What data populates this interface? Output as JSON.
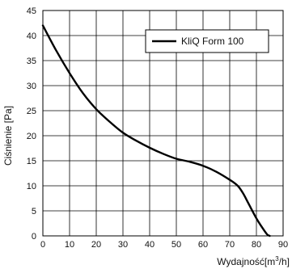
{
  "chart_data": {
    "type": "line",
    "title": "",
    "xlabel_base": "Wydajność[m",
    "xlabel_sup": "3",
    "xlabel_tail": "/h]",
    "ylabel": "Ciśnienie [Pa]",
    "xlim": [
      0,
      90
    ],
    "ylim": [
      0,
      45
    ],
    "x_ticks": [
      "0",
      "10",
      "20",
      "30",
      "40",
      "50",
      "60",
      "70",
      "80",
      "90"
    ],
    "y_ticks": [
      "0",
      "5",
      "10",
      "15",
      "20",
      "25",
      "30",
      "35",
      "40",
      "45"
    ],
    "grid": true,
    "legend_position": "top-right",
    "series": [
      {
        "name": "KliQ Form 100",
        "color": "#000000",
        "x": [
          0,
          5,
          10,
          15,
          20,
          25,
          30,
          35,
          40,
          45,
          50,
          55,
          60,
          65,
          70,
          73,
          75,
          77,
          80,
          82,
          84,
          85
        ],
        "y": [
          42,
          37,
          32.5,
          28.5,
          25.3,
          22.8,
          20.6,
          19,
          17.6,
          16.4,
          15.4,
          14.8,
          14,
          12.8,
          11.2,
          10,
          8.5,
          6.5,
          3.5,
          1.8,
          0.3,
          0
        ]
      }
    ]
  }
}
